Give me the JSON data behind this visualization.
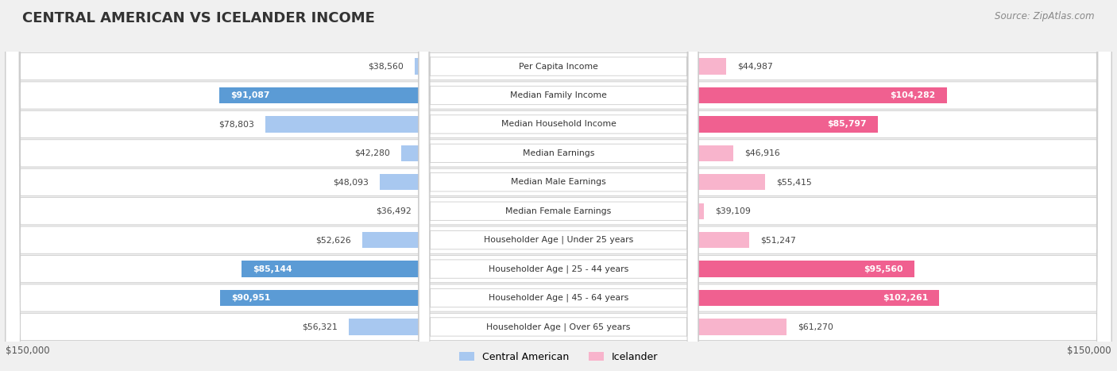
{
  "title": "CENTRAL AMERICAN VS ICELANDER INCOME",
  "source": "Source: ZipAtlas.com",
  "categories": [
    "Per Capita Income",
    "Median Family Income",
    "Median Household Income",
    "Median Earnings",
    "Median Male Earnings",
    "Median Female Earnings",
    "Householder Age | Under 25 years",
    "Householder Age | 25 - 44 years",
    "Householder Age | 45 - 64 years",
    "Householder Age | Over 65 years"
  ],
  "central_american": [
    38560,
    91087,
    78803,
    42280,
    48093,
    36492,
    52626,
    85144,
    90951,
    56321
  ],
  "icelander": [
    44987,
    104282,
    85797,
    46916,
    55415,
    39109,
    51247,
    95560,
    102261,
    61270
  ],
  "max_val": 150000,
  "blue_light": "#a8c8f0",
  "blue_dark": "#5b9bd5",
  "pink_light": "#f8b4cc",
  "pink_dark": "#f06090",
  "bg_color": "#f0f0f0",
  "row_bg_white": "#ffffff",
  "title_color": "#333333",
  "source_color": "#888888"
}
